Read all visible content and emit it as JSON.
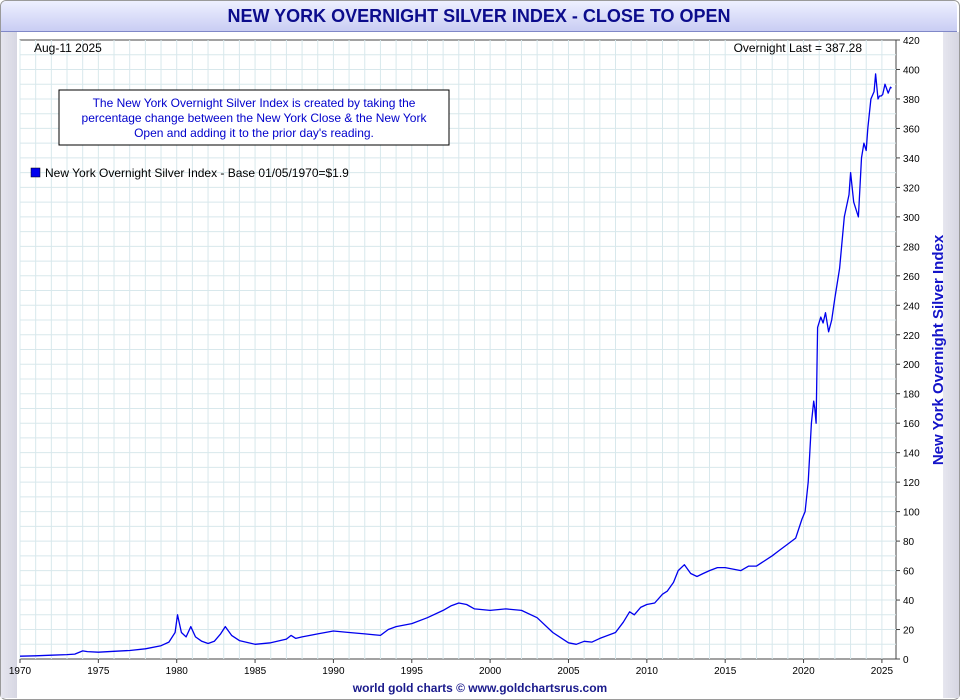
{
  "chart_data": {
    "type": "line",
    "title": "NEW YORK OVERNIGHT SILVER INDEX - CLOSE TO OPEN",
    "date_label": "Aug-11  2025",
    "last_label": "Overnight Last = 387.28",
    "description": "The New York Overnight Silver Index is created by taking the percentage change between the New York Close & the New York Open and adding it to the prior day's reading.",
    "ylabel": "New York Overnight Silver Index",
    "footer": "world gold charts © www.goldchartsrus.com",
    "xlim": [
      1970,
      2025.9
    ],
    "ylim": [
      0,
      420
    ],
    "grid": true,
    "legend_position": "top-left",
    "line_color": "#0000ee",
    "x_ticks": [
      1970,
      1975,
      1980,
      1985,
      1990,
      1995,
      2000,
      2005,
      2010,
      2015,
      2020,
      2025
    ],
    "y_ticks": [
      0,
      20,
      40,
      60,
      80,
      100,
      120,
      140,
      160,
      180,
      200,
      220,
      240,
      260,
      280,
      300,
      320,
      340,
      360,
      380,
      400,
      420
    ],
    "series": [
      {
        "name": "New York Overnight Silver Index - Base 01/05/1970=$1.9",
        "x": [
          1970.0,
          1971.0,
          1972.0,
          1973.0,
          1973.5,
          1974.0,
          1974.3,
          1975.0,
          1976.0,
          1977.0,
          1978.0,
          1979.0,
          1979.5,
          1979.9,
          1980.05,
          1980.3,
          1980.6,
          1980.9,
          1981.2,
          1981.6,
          1982.0,
          1982.4,
          1982.8,
          1983.1,
          1983.5,
          1984.0,
          1985.0,
          1986.0,
          1987.0,
          1987.3,
          1987.6,
          1988.0,
          1989.0,
          1990.0,
          1991.0,
          1992.0,
          1993.0,
          1993.5,
          1994.0,
          1995.0,
          1996.0,
          1997.0,
          1997.5,
          1998.0,
          1998.5,
          1999.0,
          2000.0,
          2001.0,
          2002.0,
          2003.0,
          2004.0,
          2005.0,
          2005.5,
          2006.0,
          2006.5,
          2007.0,
          2008.0,
          2008.5,
          2008.9,
          2009.2,
          2009.6,
          2010.0,
          2010.5,
          2011.0,
          2011.3,
          2011.7,
          2012.0,
          2012.4,
          2012.8,
          2013.2,
          2013.6,
          2014.0,
          2014.5,
          2015.0,
          2016.0,
          2016.5,
          2017.0,
          2018.0,
          2018.5,
          2019.0,
          2019.5,
          2019.9,
          2020.1,
          2020.3,
          2020.5,
          2020.65,
          2020.72,
          2020.8,
          2020.9,
          2021.1,
          2021.25,
          2021.4,
          2021.6,
          2021.8,
          2022.0,
          2022.3,
          2022.6,
          2022.9,
          2023.0,
          2023.2,
          2023.5,
          2023.7,
          2023.85,
          2024.0,
          2024.1,
          2024.3,
          2024.5,
          2024.6,
          2024.75,
          2024.85,
          2024.95,
          2025.05,
          2025.2,
          2025.4,
          2025.55,
          2025.61
        ],
        "values": [
          1.9,
          2.2,
          2.6,
          3.0,
          3.3,
          5.5,
          5.0,
          4.6,
          5.2,
          5.8,
          6.9,
          9.0,
          11.5,
          18.0,
          30.0,
          18.0,
          15.0,
          22.0,
          15.0,
          12.0,
          10.5,
          12.0,
          17.0,
          22.0,
          16.0,
          12.5,
          10.0,
          11.0,
          13.5,
          16.0,
          14.0,
          15.0,
          17.0,
          19.0,
          18.0,
          17.0,
          16.0,
          20.0,
          22.0,
          24.0,
          28.0,
          33.0,
          36.0,
          38.0,
          37.0,
          34.0,
          33.0,
          34.0,
          33.0,
          28.0,
          18.0,
          11.0,
          10.0,
          12.0,
          11.5,
          14.0,
          18.0,
          25.0,
          32.0,
          30.0,
          35.0,
          37.0,
          38.0,
          44.0,
          46.0,
          52.0,
          60.0,
          64.0,
          58.0,
          56.0,
          58.0,
          60.0,
          62.0,
          62.0,
          60.0,
          63.0,
          63.0,
          70.0,
          74.0,
          78.0,
          82.0,
          95.0,
          100.0,
          120.0,
          160.0,
          175.0,
          170.0,
          160.0,
          225.0,
          232.0,
          228.0,
          235.0,
          222.0,
          230.0,
          245.0,
          265.0,
          300.0,
          315.0,
          330.0,
          310.0,
          300.0,
          340.0,
          350.0,
          345.0,
          360.0,
          380.0,
          385.0,
          397.0,
          380.0,
          382.0,
          382.0,
          383.0,
          390.0,
          384.0,
          388.0,
          387.28
        ]
      }
    ]
  }
}
